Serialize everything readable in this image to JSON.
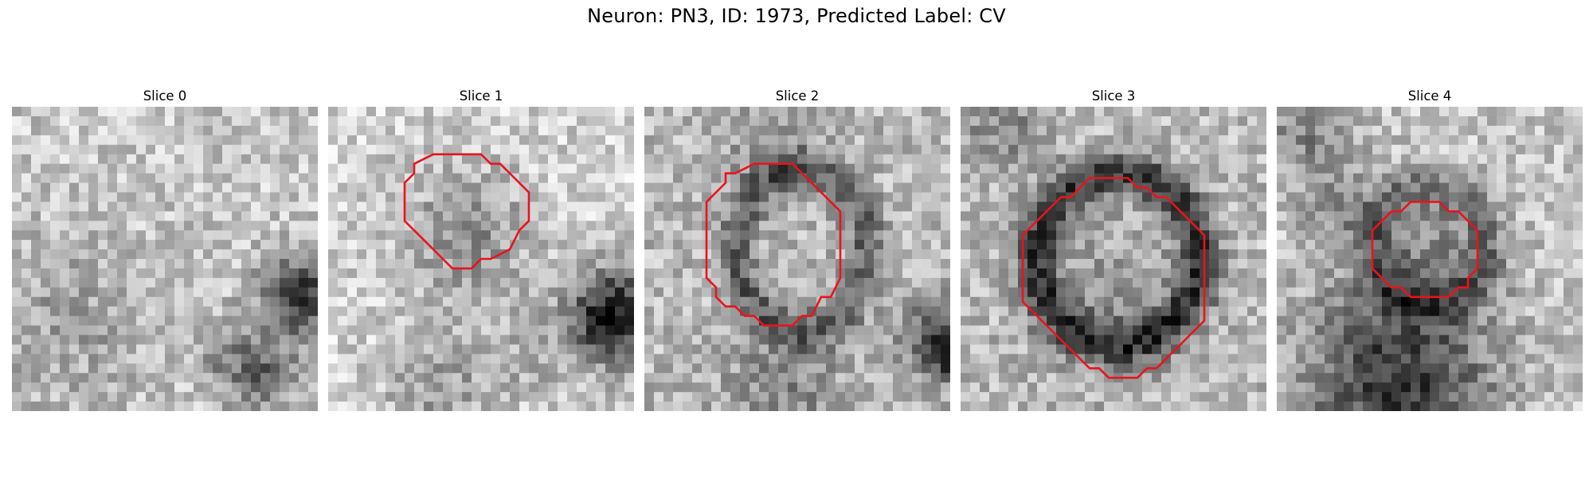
{
  "figure": {
    "title": "Neuron: PN3, ID: 1973, Predicted Label: CV"
  },
  "panels": [
    {
      "title": "Slice 0",
      "has_contour": false
    },
    {
      "title": "Slice 1",
      "has_contour": true
    },
    {
      "title": "Slice 2",
      "has_contour": true
    },
    {
      "title": "Slice 3",
      "has_contour": true
    },
    {
      "title": "Slice 4",
      "has_contour": true
    }
  ],
  "colors": {
    "contour": "#e8141c",
    "background": "#ffffff",
    "colormap": "grayscale"
  }
}
